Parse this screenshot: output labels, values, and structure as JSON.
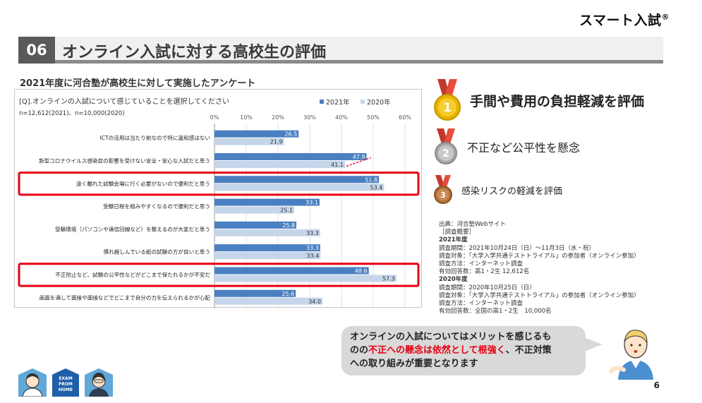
{
  "brand": {
    "name": "スマート入試",
    "mark": "®"
  },
  "title": {
    "number": "06",
    "text": "オンライン入試に対する高校生の評価"
  },
  "survey_caption": "2021年度に河合塾が高校生に対して実施したアンケート",
  "chart_data": {
    "type": "bar",
    "question": "[Q].オンラインの入試について感じていることを選択してください",
    "sample": "n=12,612(2021)、n=10,000(2020)",
    "axis_ticks": [
      "0%",
      "10%",
      "20%",
      "30%",
      "40%",
      "50%",
      "60%"
    ],
    "xlim": [
      0,
      60
    ],
    "categories": [
      "ICTの活用は当たり前なので特に違和感はない",
      "新型コロナウイルス感染症の影響を受けない安全・安心な入試だと思う",
      "遠く離れた試験会場に行く必要がないので便利だと思う",
      "受験日程を組みやすくなるので便利だと思う",
      "受験環境（パソコンや通信回線など）を整えるのが大変だと思う",
      "慣れ親しんでいる紙の試験の方が良いと思う",
      "不正防止など、試験の公平性などがどこまで保たれるかが不安だ",
      "画面を通して面接や面接などでどこまで自分の力を伝えられるかが心配"
    ],
    "series": [
      {
        "name": "2021年",
        "color": "#4a7fc1",
        "values": [
          26.5,
          47.9,
          51.8,
          33.1,
          25.8,
          33.3,
          48.6,
          25.6
        ]
      },
      {
        "name": "2020年",
        "color": "#c5d5ea",
        "values": [
          21.9,
          41.1,
          53.4,
          25.1,
          33.3,
          33.4,
          57.3,
          34.0
        ]
      }
    ],
    "value_labels_2021": [
      "26.5",
      "47.9",
      "51.8",
      "33.1",
      "25.8",
      "33.3",
      "48.6",
      "25.6"
    ],
    "value_labels_2020": [
      "21.9",
      "41.1",
      "53.4",
      "25.1",
      "33.3",
      "33.4",
      "57.3",
      "34.0"
    ],
    "highlighted_rows": [
      2,
      6
    ],
    "highlight_color": "#e60012",
    "legend_position": "top-right"
  },
  "rankings": [
    {
      "rank": "1",
      "text": "手間や費用の負担軽減を評価",
      "medal_color": "#e8b400"
    },
    {
      "rank": "2",
      "text": "不正など公平性を懸念",
      "medal_color": "#a8a8a8"
    },
    {
      "rank": "3",
      "text": "感染リスクの軽減を評価",
      "medal_color": "#b0703a"
    }
  ],
  "source": {
    "lines": [
      "出典：河合塾Webサイト",
      "［調査概要］",
      "2021年度",
      "調査期間：2021年10月24日（日）〜11月3日（水・祝）",
      "調査対象：「大学入学共通テストトライアル」の参加者（オンライン参加）",
      "調査方法：インターネット調査",
      "有効回答数：高1・2生 12,612名",
      "2020年度",
      "調査期間：2020年10月25日（日）",
      "調査対象：「大学入学共通テストトライアル」の参加者（オンライン参加）",
      "調査方法：インターネット調査",
      "有効回答数：全国の高1・2生　10,000名"
    ]
  },
  "callout": {
    "part1": "オンラインの入試についてはメリットを感じるも",
    "part2": "のの",
    "highlight": "不正への懸念は依然として根強く",
    "part3": "、不正対策",
    "part4": "への取り組みが重要となります"
  },
  "footer": {
    "page_number": "6",
    "exam_badge": [
      "EXAM",
      "FROM",
      "HOME"
    ]
  }
}
